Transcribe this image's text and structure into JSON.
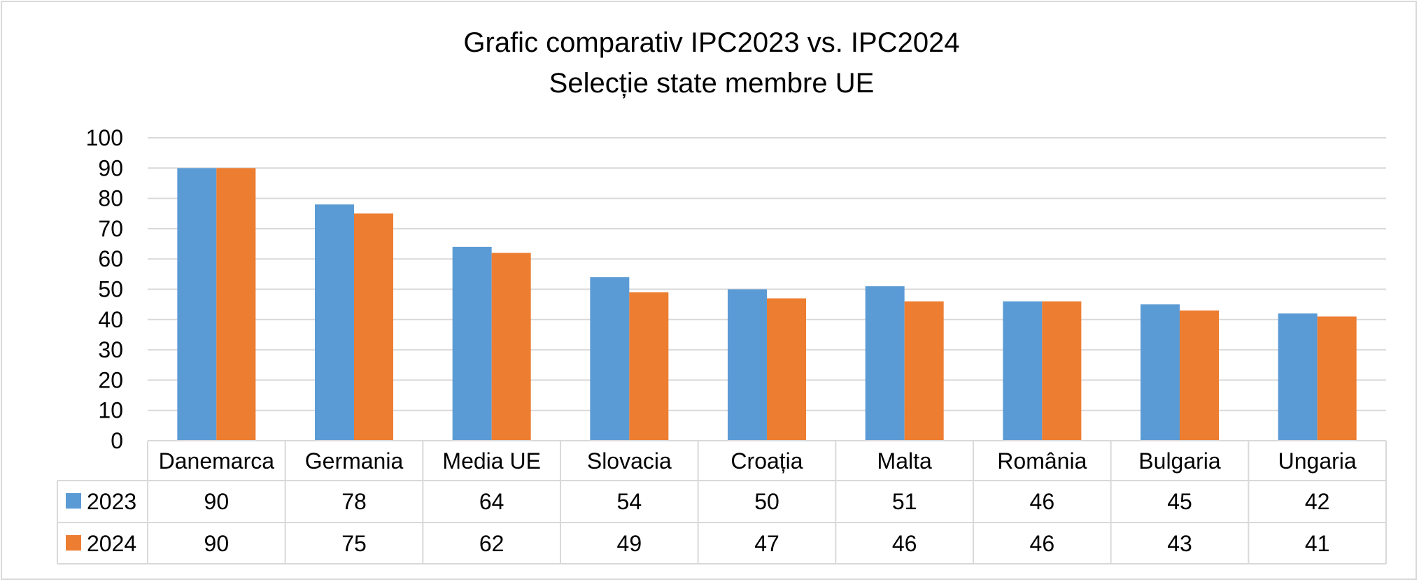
{
  "chart_data": {
    "type": "bar",
    "title": "Grafic comparativ IPC2023 vs. IPC2024",
    "subtitle": "Selecție state membre UE",
    "categories": [
      "Danemarca",
      "Germania",
      "Media UE",
      "Slovacia",
      "Croația",
      "Malta",
      "România",
      "Bulgaria",
      "Ungaria"
    ],
    "series": [
      {
        "name": "2023",
        "color": "#5b9bd5",
        "values": [
          90,
          78,
          64,
          54,
          50,
          51,
          46,
          45,
          42
        ]
      },
      {
        "name": "2024",
        "color": "#ed7d31",
        "values": [
          90,
          75,
          62,
          49,
          47,
          46,
          46,
          43,
          41
        ]
      }
    ],
    "ylim": [
      0,
      100
    ],
    "yticks": [
      0,
      10,
      20,
      30,
      40,
      50,
      60,
      70,
      80,
      90,
      100
    ],
    "grid": true,
    "legend": "data-table",
    "data_table": true
  }
}
